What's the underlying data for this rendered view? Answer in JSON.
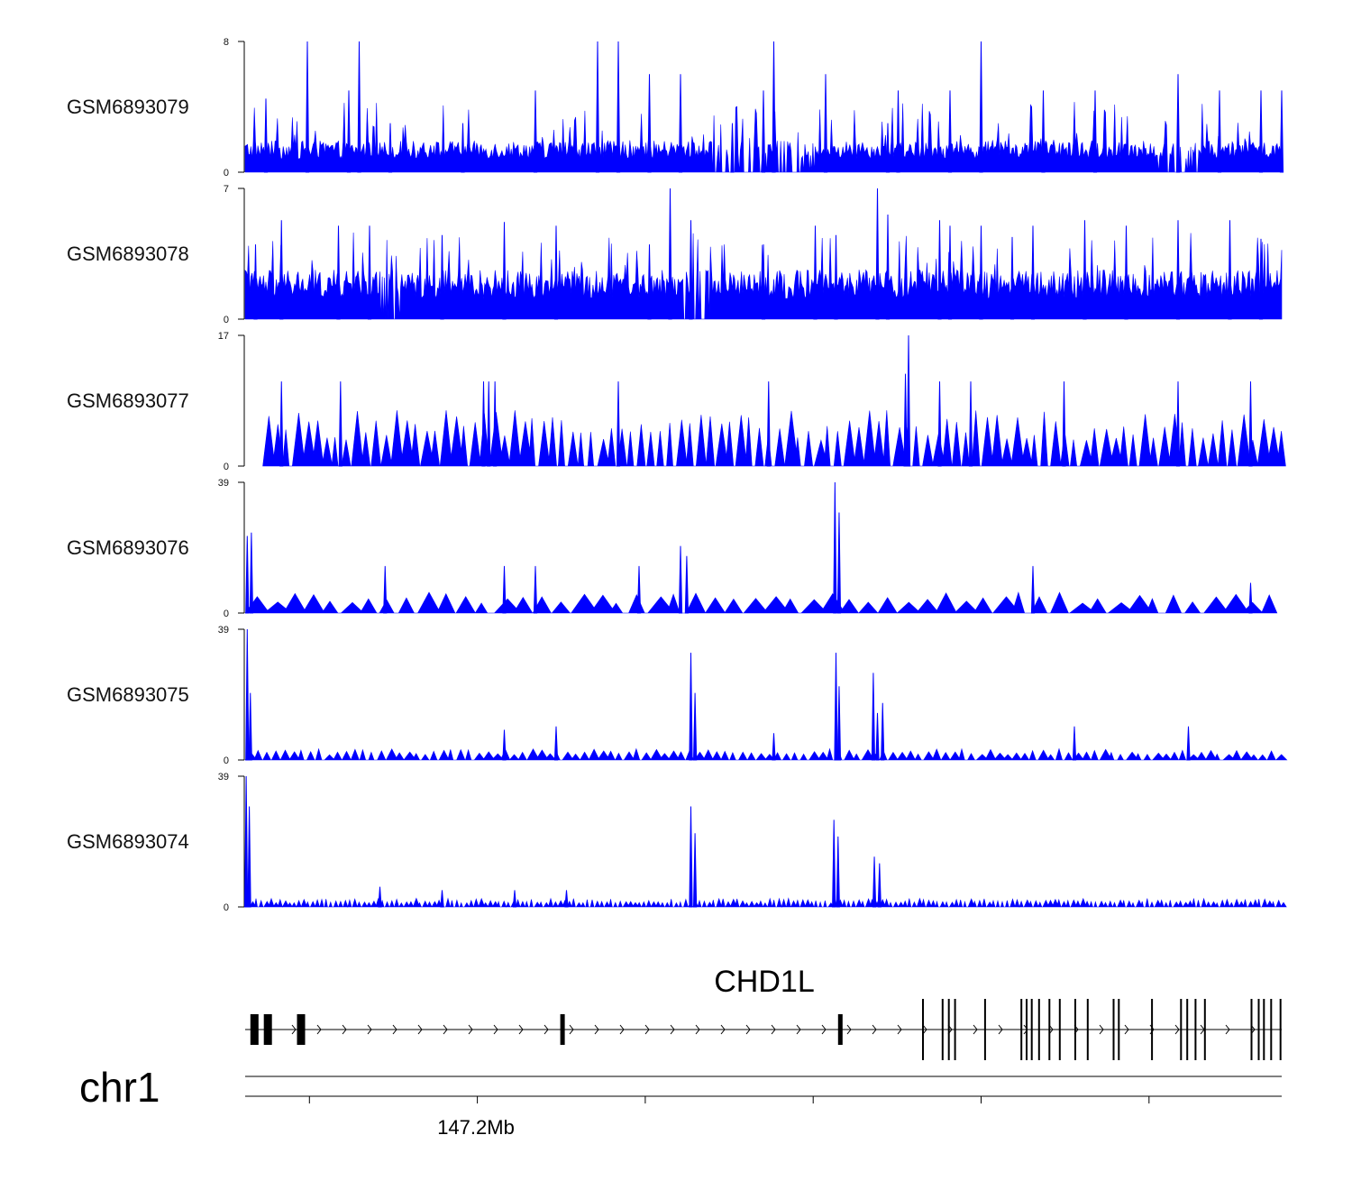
{
  "chart_data": {
    "type": "area",
    "chromosome": "chr1",
    "series_color": "#0000ff",
    "tracks": [
      {
        "name": "GSM6893079",
        "ylim": [
          0,
          8
        ],
        "baseline": 0.8,
        "peaks": [
          [
            0.06,
            8
          ],
          [
            0.11,
            8
          ],
          [
            0.34,
            8
          ],
          [
            0.36,
            8
          ],
          [
            0.51,
            8
          ],
          [
            0.71,
            8
          ],
          [
            0.1,
            5
          ],
          [
            0.28,
            5
          ],
          [
            0.39,
            6
          ],
          [
            0.42,
            6
          ],
          [
            0.5,
            5
          ],
          [
            0.56,
            6
          ],
          [
            0.63,
            5
          ],
          [
            0.68,
            5
          ],
          [
            0.77,
            5
          ],
          [
            0.82,
            5
          ],
          [
            0.9,
            6
          ],
          [
            0.94,
            5
          ],
          [
            0.98,
            5
          ],
          [
            1.0,
            5
          ],
          [
            0.02,
            4.5
          ],
          [
            0.14,
            3
          ],
          [
            0.21,
            3
          ],
          [
            0.47,
            3
          ],
          [
            0.62,
            3
          ]
        ],
        "gaps": [
          [
            0.45,
            0.55
          ],
          [
            0.88,
            0.92
          ]
        ]
      },
      {
        "name": "GSM6893078",
        "ylim": [
          0,
          7
        ],
        "baseline": 1.1,
        "peaks": [
          [
            0.035,
            5.3
          ],
          [
            0.09,
            5
          ],
          [
            0.12,
            5
          ],
          [
            0.25,
            5.2
          ],
          [
            0.41,
            7
          ],
          [
            0.43,
            5.3
          ],
          [
            0.55,
            5
          ],
          [
            0.61,
            7
          ],
          [
            0.62,
            5.6
          ],
          [
            0.67,
            5.3
          ],
          [
            0.68,
            5
          ],
          [
            0.71,
            5
          ],
          [
            0.76,
            5
          ],
          [
            0.81,
            5.3
          ],
          [
            0.85,
            5
          ],
          [
            0.9,
            5.3
          ],
          [
            0.95,
            5.3
          ],
          [
            0.98,
            4.3
          ],
          [
            0.01,
            4
          ],
          [
            0.19,
            4.5
          ],
          [
            0.3,
            5
          ],
          [
            0.39,
            4
          ],
          [
            0.5,
            4
          ],
          [
            0.57,
            4.5
          ],
          [
            0.74,
            4.4
          ]
        ],
        "gaps": [
          [
            0.13,
            0.15
          ],
          [
            0.42,
            0.45
          ]
        ]
      },
      {
        "name": "GSM6893077",
        "ylim": [
          0,
          17
        ],
        "baseline": 0,
        "peaks": [
          [
            0.035,
            11
          ],
          [
            0.092,
            11
          ],
          [
            0.23,
            11
          ],
          [
            0.235,
            11
          ],
          [
            0.241,
            11
          ],
          [
            0.36,
            11
          ],
          [
            0.505,
            11
          ],
          [
            0.637,
            12
          ],
          [
            0.64,
            17
          ],
          [
            0.67,
            11
          ],
          [
            0.7,
            11
          ],
          [
            0.79,
            11
          ],
          [
            0.9,
            11
          ],
          [
            0.97,
            11
          ]
        ],
        "teeth": 5.6,
        "teeth_step": 0.0095,
        "start": 0.017
      },
      {
        "name": "GSM6893076",
        "ylim": [
          0,
          39
        ],
        "baseline": 0,
        "peaks": [
          [
            0.002,
            23
          ],
          [
            0.006,
            24
          ],
          [
            0.135,
            14
          ],
          [
            0.25,
            14
          ],
          [
            0.28,
            14
          ],
          [
            0.38,
            14
          ],
          [
            0.42,
            20
          ],
          [
            0.426,
            17
          ],
          [
            0.569,
            39
          ],
          [
            0.573,
            30
          ],
          [
            0.76,
            14
          ],
          [
            0.97,
            9
          ]
        ],
        "teeth": 4.8,
        "teeth_step": 0.0185,
        "start": 0.0,
        "end": 0.992
      },
      {
        "name": "GSM6893075",
        "ylim": [
          0,
          39
        ],
        "baseline": 0,
        "peaks": [
          [
            0.002,
            39
          ],
          [
            0.005,
            20
          ],
          [
            0.25,
            9
          ],
          [
            0.3,
            10
          ],
          [
            0.43,
            32
          ],
          [
            0.434,
            20
          ],
          [
            0.57,
            32
          ],
          [
            0.573,
            22
          ],
          [
            0.606,
            26
          ],
          [
            0.61,
            14
          ],
          [
            0.615,
            17
          ],
          [
            0.51,
            8
          ],
          [
            0.91,
            10
          ],
          [
            0.8,
            10
          ]
        ],
        "teeth": 2.6,
        "teeth_step": 0.0085,
        "start": 0.0
      },
      {
        "name": "GSM6893074",
        "ylim": [
          0,
          39
        ],
        "baseline": 0.5,
        "peaks": [
          [
            0.001,
            39
          ],
          [
            0.004,
            30
          ],
          [
            0.43,
            30
          ],
          [
            0.434,
            22
          ],
          [
            0.568,
            26
          ],
          [
            0.572,
            21
          ],
          [
            0.607,
            15
          ],
          [
            0.612,
            13
          ],
          [
            0.26,
            5
          ],
          [
            0.31,
            5
          ],
          [
            0.13,
            6
          ],
          [
            0.19,
            5
          ]
        ],
        "teeth": 2.0,
        "teeth_step": 0.0045,
        "start": 0.0
      }
    ],
    "gene": {
      "name": "CHD1L",
      "strand": "+",
      "exons": [
        0.005,
        0.018,
        0.05,
        0.304,
        0.572,
        0.653,
        0.672,
        0.678,
        0.684,
        0.713,
        0.748,
        0.753,
        0.758,
        0.765,
        0.775,
        0.785,
        0.8,
        0.812,
        0.837,
        0.842,
        0.874,
        0.902,
        0.908,
        0.916,
        0.925,
        0.97,
        0.977,
        0.982,
        0.989,
        0.998
      ]
    },
    "genome_axis": {
      "tick_label": "147.2Mb",
      "ticks": [
        0.062,
        0.224,
        0.386,
        0.548,
        0.71,
        0.872
      ]
    }
  }
}
